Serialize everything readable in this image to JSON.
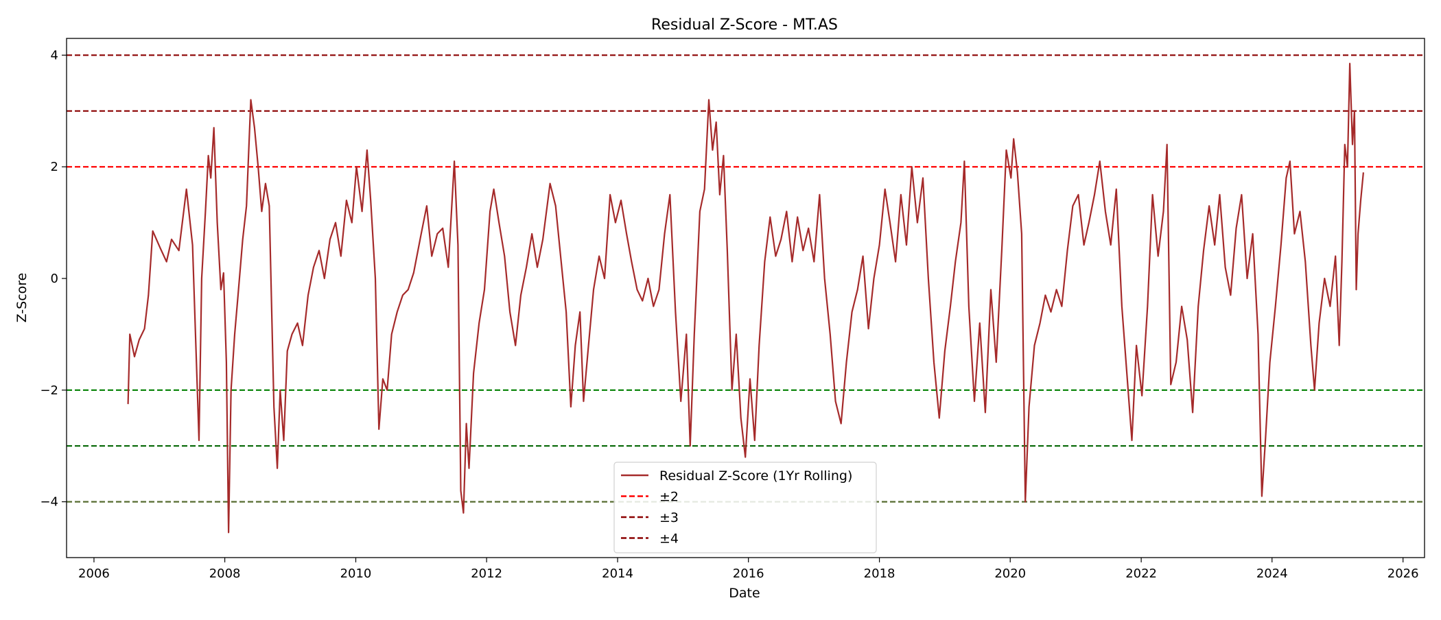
{
  "chart_data": {
    "type": "line",
    "title": "Residual Z-Score - MT.AS",
    "xlabel": "Date",
    "ylabel": "Z-Score",
    "xlim": [
      "2005-08-01",
      "2026-05-01"
    ],
    "ylim": [
      -5,
      4.3
    ],
    "x_ticks": [
      "2006",
      "2008",
      "2010",
      "2012",
      "2014",
      "2016",
      "2018",
      "2020",
      "2022",
      "2024",
      "2026"
    ],
    "y_ticks": [
      "−4",
      "−2",
      "0",
      "2",
      "4"
    ],
    "grid": false,
    "legend_position": "lower center",
    "series": [
      {
        "name": "Residual Z-Score (1Yr Rolling)",
        "color": "#a52a2a",
        "points": [
          [
            "2006-07-10",
            -2.25
          ],
          [
            "2006-07-20",
            -1.0
          ],
          [
            "2006-08-15",
            -1.4
          ],
          [
            "2006-09-10",
            -1.1
          ],
          [
            "2006-10-10",
            -0.9
          ],
          [
            "2006-11-01",
            -0.3
          ],
          [
            "2006-11-25",
            0.85
          ],
          [
            "2007-01-05",
            0.55
          ],
          [
            "2007-02-10",
            0.3
          ],
          [
            "2007-03-10",
            0.7
          ],
          [
            "2007-04-20",
            0.5
          ],
          [
            "2007-06-01",
            1.6
          ],
          [
            "2007-07-05",
            0.6
          ],
          [
            "2007-08-10",
            -2.9
          ],
          [
            "2007-08-25",
            0.0
          ],
          [
            "2007-09-15",
            1.2
          ],
          [
            "2007-10-01",
            2.2
          ],
          [
            "2007-10-15",
            1.8
          ],
          [
            "2007-11-01",
            2.7
          ],
          [
            "2007-11-20",
            1.0
          ],
          [
            "2007-12-10",
            -0.2
          ],
          [
            "2007-12-25",
            0.1
          ],
          [
            "2008-01-10",
            -1.5
          ],
          [
            "2008-01-22",
            -4.55
          ],
          [
            "2008-02-05",
            -2.0
          ],
          [
            "2008-02-25",
            -1.0
          ],
          [
            "2008-03-15",
            -0.3
          ],
          [
            "2008-04-10",
            0.7
          ],
          [
            "2008-05-01",
            1.3
          ],
          [
            "2008-05-25",
            3.2
          ],
          [
            "2008-06-15",
            2.7
          ],
          [
            "2008-07-05",
            2.0
          ],
          [
            "2008-07-25",
            1.2
          ],
          [
            "2008-08-15",
            1.7
          ],
          [
            "2008-09-05",
            1.3
          ],
          [
            "2008-10-01",
            -2.3
          ],
          [
            "2008-10-20",
            -3.4
          ],
          [
            "2008-11-05",
            -2.0
          ],
          [
            "2008-11-25",
            -2.9
          ],
          [
            "2008-12-15",
            -1.3
          ],
          [
            "2009-01-10",
            -1.0
          ],
          [
            "2009-02-10",
            -0.8
          ],
          [
            "2009-03-10",
            -1.2
          ],
          [
            "2009-04-10",
            -0.3
          ],
          [
            "2009-05-10",
            0.2
          ],
          [
            "2009-06-10",
            0.5
          ],
          [
            "2009-07-10",
            0.0
          ],
          [
            "2009-08-10",
            0.7
          ],
          [
            "2009-09-10",
            1.0
          ],
          [
            "2009-10-10",
            0.4
          ],
          [
            "2009-11-10",
            1.4
          ],
          [
            "2009-12-10",
            1.0
          ],
          [
            "2010-01-05",
            2.0
          ],
          [
            "2010-02-05",
            1.2
          ],
          [
            "2010-03-05",
            2.3
          ],
          [
            "2010-03-25",
            1.4
          ],
          [
            "2010-04-20",
            0.0
          ],
          [
            "2010-05-10",
            -2.7
          ],
          [
            "2010-06-01",
            -1.8
          ],
          [
            "2010-06-25",
            -2.0
          ],
          [
            "2010-07-20",
            -1.0
          ],
          [
            "2010-08-20",
            -0.6
          ],
          [
            "2010-09-20",
            -0.3
          ],
          [
            "2010-10-20",
            -0.2
          ],
          [
            "2010-11-20",
            0.1
          ],
          [
            "2011-01-01",
            0.8
          ],
          [
            "2011-02-01",
            1.3
          ],
          [
            "2011-03-01",
            0.4
          ],
          [
            "2011-04-01",
            0.8
          ],
          [
            "2011-05-01",
            0.9
          ],
          [
            "2011-06-01",
            0.2
          ],
          [
            "2011-07-05",
            2.1
          ],
          [
            "2011-07-25",
            0.6
          ],
          [
            "2011-08-10",
            -3.8
          ],
          [
            "2011-08-25",
            -4.2
          ],
          [
            "2011-09-10",
            -2.6
          ],
          [
            "2011-09-25",
            -3.4
          ],
          [
            "2011-10-20",
            -1.7
          ],
          [
            "2011-11-20",
            -0.8
          ],
          [
            "2011-12-20",
            -0.2
          ],
          [
            "2012-01-20",
            1.2
          ],
          [
            "2012-02-10",
            1.6
          ],
          [
            "2012-03-10",
            1.0
          ],
          [
            "2012-04-10",
            0.4
          ],
          [
            "2012-05-10",
            -0.6
          ],
          [
            "2012-06-10",
            -1.2
          ],
          [
            "2012-07-10",
            -0.3
          ],
          [
            "2012-08-10",
            0.2
          ],
          [
            "2012-09-10",
            0.8
          ],
          [
            "2012-10-10",
            0.2
          ],
          [
            "2012-11-10",
            0.7
          ],
          [
            "2012-12-20",
            1.7
          ],
          [
            "2013-01-20",
            1.3
          ],
          [
            "2013-02-20",
            0.3
          ],
          [
            "2013-03-20",
            -0.6
          ],
          [
            "2013-04-15",
            -2.3
          ],
          [
            "2013-05-10",
            -1.2
          ],
          [
            "2013-06-05",
            -0.6
          ],
          [
            "2013-06-25",
            -2.2
          ],
          [
            "2013-07-20",
            -1.3
          ],
          [
            "2013-08-20",
            -0.2
          ],
          [
            "2013-09-20",
            0.4
          ],
          [
            "2013-10-20",
            0.0
          ],
          [
            "2013-11-20",
            1.5
          ],
          [
            "2013-12-20",
            1.0
          ],
          [
            "2014-01-20",
            1.4
          ],
          [
            "2014-02-20",
            0.8
          ],
          [
            "2014-03-20",
            0.3
          ],
          [
            "2014-04-20",
            -0.2
          ],
          [
            "2014-05-20",
            -0.4
          ],
          [
            "2014-06-20",
            0.0
          ],
          [
            "2014-07-20",
            -0.5
          ],
          [
            "2014-08-20",
            -0.2
          ],
          [
            "2014-09-20",
            0.8
          ],
          [
            "2014-10-20",
            1.5
          ],
          [
            "2014-11-20",
            -0.6
          ],
          [
            "2014-12-20",
            -2.2
          ],
          [
            "2015-01-20",
            -1.0
          ],
          [
            "2015-02-10",
            -3.0
          ],
          [
            "2015-03-05",
            -1.0
          ],
          [
            "2015-04-05",
            1.2
          ],
          [
            "2015-05-01",
            1.6
          ],
          [
            "2015-05-25",
            3.2
          ],
          [
            "2015-06-15",
            2.3
          ],
          [
            "2015-07-05",
            2.8
          ],
          [
            "2015-07-25",
            1.5
          ],
          [
            "2015-08-15",
            2.2
          ],
          [
            "2015-09-05",
            0.5
          ],
          [
            "2015-10-01",
            -2.0
          ],
          [
            "2015-10-25",
            -1.0
          ],
          [
            "2015-11-20",
            -2.5
          ],
          [
            "2015-12-15",
            -3.2
          ],
          [
            "2016-01-10",
            -1.8
          ],
          [
            "2016-02-05",
            -2.9
          ],
          [
            "2016-03-01",
            -1.2
          ],
          [
            "2016-04-01",
            0.3
          ],
          [
            "2016-05-01",
            1.1
          ],
          [
            "2016-06-01",
            0.4
          ],
          [
            "2016-07-01",
            0.7
          ],
          [
            "2016-08-01",
            1.2
          ],
          [
            "2016-09-01",
            0.3
          ],
          [
            "2016-10-01",
            1.1
          ],
          [
            "2016-11-01",
            0.5
          ],
          [
            "2016-12-01",
            0.9
          ],
          [
            "2017-01-01",
            0.3
          ],
          [
            "2017-02-01",
            1.5
          ],
          [
            "2017-03-01",
            0.0
          ],
          [
            "2017-04-01",
            -1.0
          ],
          [
            "2017-05-01",
            -2.2
          ],
          [
            "2017-06-01",
            -2.6
          ],
          [
            "2017-07-01",
            -1.5
          ],
          [
            "2017-08-01",
            -0.6
          ],
          [
            "2017-09-01",
            -0.2
          ],
          [
            "2017-10-01",
            0.4
          ],
          [
            "2017-11-01",
            -0.9
          ],
          [
            "2017-12-01",
            0.0
          ],
          [
            "2018-01-01",
            0.6
          ],
          [
            "2018-02-01",
            1.6
          ],
          [
            "2018-03-01",
            1.0
          ],
          [
            "2018-04-01",
            0.3
          ],
          [
            "2018-05-01",
            1.5
          ],
          [
            "2018-06-01",
            0.6
          ],
          [
            "2018-07-01",
            2.0
          ],
          [
            "2018-08-01",
            1.0
          ],
          [
            "2018-09-01",
            1.8
          ],
          [
            "2018-10-01",
            0.0
          ],
          [
            "2018-11-01",
            -1.5
          ],
          [
            "2018-12-01",
            -2.5
          ],
          [
            "2019-01-01",
            -1.3
          ],
          [
            "2019-02-01",
            -0.5
          ],
          [
            "2019-03-01",
            0.3
          ],
          [
            "2019-04-01",
            1.0
          ],
          [
            "2019-04-20",
            2.1
          ],
          [
            "2019-05-15",
            -0.5
          ],
          [
            "2019-06-15",
            -2.2
          ],
          [
            "2019-07-15",
            -0.8
          ],
          [
            "2019-08-15",
            -2.4
          ],
          [
            "2019-09-15",
            -0.2
          ],
          [
            "2019-10-15",
            -1.5
          ],
          [
            "2019-11-15",
            0.5
          ],
          [
            "2019-12-10",
            2.3
          ],
          [
            "2020-01-05",
            1.8
          ],
          [
            "2020-01-20",
            2.5
          ],
          [
            "2020-02-10",
            1.9
          ],
          [
            "2020-03-05",
            0.8
          ],
          [
            "2020-03-25",
            -4.0
          ],
          [
            "2020-04-15",
            -2.3
          ],
          [
            "2020-05-15",
            -1.2
          ],
          [
            "2020-06-15",
            -0.8
          ],
          [
            "2020-07-15",
            -0.3
          ],
          [
            "2020-08-15",
            -0.6
          ],
          [
            "2020-09-15",
            -0.2
          ],
          [
            "2020-10-15",
            -0.5
          ],
          [
            "2020-11-15",
            0.5
          ],
          [
            "2020-12-15",
            1.3
          ],
          [
            "2021-01-15",
            1.5
          ],
          [
            "2021-02-15",
            0.6
          ],
          [
            "2021-03-15",
            1.0
          ],
          [
            "2021-04-15",
            1.5
          ],
          [
            "2021-05-15",
            2.1
          ],
          [
            "2021-06-15",
            1.2
          ],
          [
            "2021-07-15",
            0.6
          ],
          [
            "2021-08-15",
            1.6
          ],
          [
            "2021-09-15",
            -0.5
          ],
          [
            "2021-10-15",
            -1.8
          ],
          [
            "2021-11-10",
            -2.9
          ],
          [
            "2021-12-05",
            -1.2
          ],
          [
            "2022-01-05",
            -2.1
          ],
          [
            "2022-02-05",
            -0.5
          ],
          [
            "2022-03-05",
            1.5
          ],
          [
            "2022-04-05",
            0.4
          ],
          [
            "2022-05-05",
            1.2
          ],
          [
            "2022-05-25",
            2.4
          ],
          [
            "2022-06-15",
            -1.9
          ],
          [
            "2022-07-15",
            -1.5
          ],
          [
            "2022-08-15",
            -0.5
          ],
          [
            "2022-09-15",
            -1.1
          ],
          [
            "2022-10-15",
            -2.4
          ],
          [
            "2022-11-15",
            -0.5
          ],
          [
            "2022-12-15",
            0.5
          ],
          [
            "2023-01-15",
            1.3
          ],
          [
            "2023-02-15",
            0.6
          ],
          [
            "2023-03-15",
            1.5
          ],
          [
            "2023-04-15",
            0.2
          ],
          [
            "2023-05-15",
            -0.3
          ],
          [
            "2023-06-15",
            0.9
          ],
          [
            "2023-07-15",
            1.5
          ],
          [
            "2023-08-15",
            0.0
          ],
          [
            "2023-09-15",
            0.8
          ],
          [
            "2023-10-15",
            -1.0
          ],
          [
            "2023-11-05",
            -3.9
          ],
          [
            "2023-11-25",
            -2.9
          ],
          [
            "2023-12-20",
            -1.5
          ],
          [
            "2024-01-20",
            -0.5
          ],
          [
            "2024-02-20",
            0.6
          ],
          [
            "2024-03-20",
            1.8
          ],
          [
            "2024-04-10",
            2.1
          ],
          [
            "2024-05-05",
            0.8
          ],
          [
            "2024-06-05",
            1.2
          ],
          [
            "2024-07-05",
            0.3
          ],
          [
            "2024-08-05",
            -1.2
          ],
          [
            "2024-08-25",
            -2.0
          ],
          [
            "2024-09-20",
            -0.8
          ],
          [
            "2024-10-20",
            0.0
          ],
          [
            "2024-11-20",
            -0.5
          ],
          [
            "2024-12-20",
            0.4
          ],
          [
            "2025-01-10",
            -1.2
          ],
          [
            "2025-01-25",
            0.3
          ],
          [
            "2025-02-10",
            2.4
          ],
          [
            "2025-02-25",
            2.0
          ],
          [
            "2025-03-10",
            3.85
          ],
          [
            "2025-03-25",
            2.4
          ],
          [
            "2025-04-05",
            3.0
          ],
          [
            "2025-04-15",
            -0.2
          ],
          [
            "2025-04-25",
            0.8
          ],
          [
            "2025-05-10",
            1.4
          ],
          [
            "2025-05-25",
            1.9
          ]
        ]
      }
    ],
    "reference_lines": [
      {
        "label": "±2",
        "value": 2,
        "color": "#ff0000",
        "in_legend": true
      },
      {
        "label": "",
        "value": -2,
        "color": "#008000",
        "in_legend": false
      },
      {
        "label": "±3",
        "value": 3,
        "color": "#8b0000",
        "in_legend": true
      },
      {
        "label": "",
        "value": -3,
        "color": "#006400",
        "in_legend": false
      },
      {
        "label": "±4",
        "value": 4,
        "color": "#8b0000",
        "in_legend": true
      },
      {
        "label": "",
        "value": -4,
        "color": "#556b2f",
        "in_legend": false
      }
    ]
  }
}
